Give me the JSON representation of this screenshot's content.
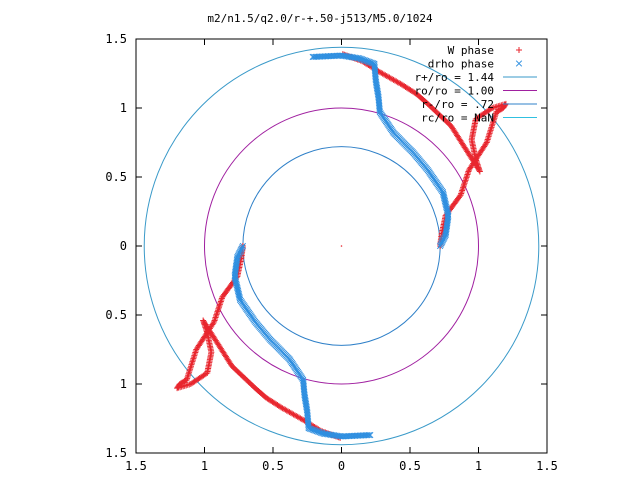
{
  "chart_data": {
    "type": "scatter",
    "title": "m2/n1.5/q2.0/r-+.50-j513/M5.0/1024",
    "xlim": [
      -1.5,
      1.5
    ],
    "ylim": [
      -1.5,
      1.5
    ],
    "x_tick_labels": [
      "1.5",
      "1",
      "0.5",
      "0",
      "0.5",
      "1",
      "1.5"
    ],
    "x_tick_values": [
      -1.5,
      -1,
      -0.5,
      0,
      0.5,
      1,
      1.5
    ],
    "y_tick_labels": [
      "1.5",
      "1",
      "0.5",
      "0",
      "0.5",
      "1",
      "1.5"
    ],
    "y_tick_values": [
      1.5,
      1,
      0.5,
      0,
      -0.5,
      -1,
      -1.5
    ],
    "grid": false,
    "legend_position": "top-right",
    "legend": [
      {
        "label": "W phase",
        "marker": "+",
        "color": "#e8262e"
      },
      {
        "label": "drho phase",
        "marker": "x",
        "color": "#2f8fe0"
      },
      {
        "label": "r+/ro = 1.44",
        "line": true,
        "color": "#3a9ac9"
      },
      {
        "label": "ro/ro = 1.00",
        "line": true,
        "color": "#a020a0"
      },
      {
        "label": "r-/ro = .72",
        "line": true,
        "color": "#2f80c8"
      },
      {
        "label": "rc/ro = NaN",
        "line": true,
        "color": "#30c0e0"
      }
    ],
    "circles": [
      {
        "name": "r+/ro",
        "radius": 1.44,
        "color": "#3a9ac9"
      },
      {
        "name": "ro/ro",
        "radius": 1.0,
        "color": "#a020a0"
      },
      {
        "name": "r-/ro",
        "radius": 0.72,
        "color": "#2f80c8"
      }
    ],
    "series": [
      {
        "name": "W phase",
        "marker": "+",
        "color": "#e8262e",
        "paths": [
          [
            [
              0.72,
              0.0
            ],
            [
              0.73,
              0.08
            ],
            [
              0.76,
              0.22
            ],
            [
              0.87,
              0.37
            ],
            [
              0.93,
              0.55
            ],
            [
              1.06,
              0.75
            ],
            [
              1.13,
              0.97
            ],
            [
              1.18,
              1.0
            ],
            [
              1.2,
              1.03
            ],
            [
              1.1,
              1.0
            ],
            [
              0.98,
              0.92
            ],
            [
              0.95,
              0.77
            ],
            [
              0.98,
              0.63
            ],
            [
              1.01,
              0.54
            ],
            [
              0.8,
              0.87
            ],
            [
              0.63,
              1.03
            ],
            [
              0.55,
              1.1
            ],
            [
              0.44,
              1.17
            ],
            [
              0.28,
              1.26
            ],
            [
              0.15,
              1.34
            ],
            [
              0.01,
              1.39
            ]
          ],
          [
            [
              -0.72,
              0.0
            ],
            [
              -0.73,
              -0.08
            ],
            [
              -0.76,
              -0.22
            ],
            [
              -0.87,
              -0.37
            ],
            [
              -0.93,
              -0.55
            ],
            [
              -1.06,
              -0.75
            ],
            [
              -1.13,
              -0.97
            ],
            [
              -1.18,
              -1.0
            ],
            [
              -1.2,
              -1.03
            ],
            [
              -1.1,
              -1.0
            ],
            [
              -0.98,
              -0.92
            ],
            [
              -0.95,
              -0.77
            ],
            [
              -0.98,
              -0.63
            ],
            [
              -1.01,
              -0.54
            ],
            [
              -0.8,
              -0.87
            ],
            [
              -0.63,
              -1.03
            ],
            [
              -0.55,
              -1.1
            ],
            [
              -0.44,
              -1.17
            ],
            [
              -0.28,
              -1.26
            ],
            [
              -0.15,
              -1.34
            ],
            [
              -0.01,
              -1.39
            ]
          ]
        ]
      },
      {
        "name": "drho phase",
        "marker": "x",
        "color": "#2f8fe0",
        "paths": [
          [
            [
              0.72,
              0.0
            ],
            [
              0.76,
              0.08
            ],
            [
              0.78,
              0.22
            ],
            [
              0.74,
              0.39
            ],
            [
              0.63,
              0.55
            ],
            [
              0.52,
              0.68
            ],
            [
              0.38,
              0.82
            ],
            [
              0.28,
              0.97
            ],
            [
              0.27,
              1.08
            ],
            [
              0.25,
              1.2
            ],
            [
              0.24,
              1.32
            ],
            [
              0.13,
              1.36
            ],
            [
              0.0,
              1.38
            ],
            [
              -0.21,
              1.37
            ]
          ],
          [
            [
              -0.72,
              0.0
            ],
            [
              -0.76,
              -0.08
            ],
            [
              -0.78,
              -0.22
            ],
            [
              -0.74,
              -0.39
            ],
            [
              -0.63,
              -0.55
            ],
            [
              -0.52,
              -0.68
            ],
            [
              -0.38,
              -0.82
            ],
            [
              -0.28,
              -0.97
            ],
            [
              -0.27,
              -1.08
            ],
            [
              -0.25,
              -1.2
            ],
            [
              -0.24,
              -1.32
            ],
            [
              -0.13,
              -1.36
            ],
            [
              0.0,
              -1.38
            ],
            [
              0.21,
              -1.37
            ]
          ]
        ]
      }
    ]
  }
}
